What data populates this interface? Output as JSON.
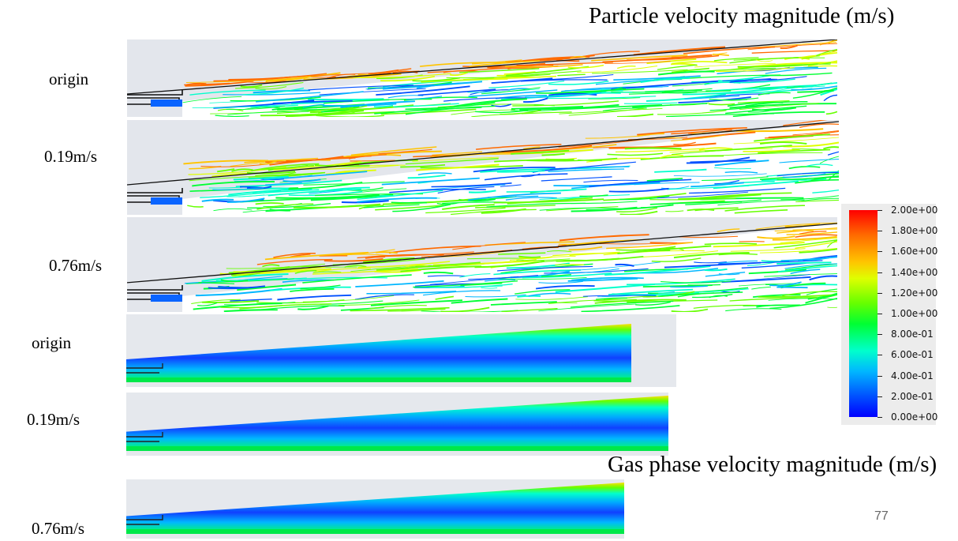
{
  "slide": {
    "particle_title": "Particle velocity magnitude (m/s)",
    "gas_title": "Gas phase velocity magnitude (m/s)",
    "page_number": "77"
  },
  "particle_rows": [
    {
      "label": "origin"
    },
    {
      "label": "0.19m/s"
    },
    {
      "label": "0.76m/s"
    }
  ],
  "gas_rows": [
    {
      "label": "origin"
    },
    {
      "label": "0.19m/s"
    },
    {
      "label": "0.76m/s"
    }
  ],
  "legend": {
    "labels": [
      "2.00e+00",
      "1.80e+00",
      "1.60e+00",
      "1.40e+00",
      "1.20e+00",
      "1.00e+00",
      "8.00e-01",
      "6.00e-01",
      "4.00e-01",
      "2.00e-01",
      "0.00e+00"
    ],
    "colors": [
      "#ff0000",
      "#ff6a00",
      "#ffc400",
      "#dfff00",
      "#66ff00",
      "#00ff33",
      "#00ffcc",
      "#00b6ff",
      "#0050ff",
      "#0000ff"
    ]
  }
}
